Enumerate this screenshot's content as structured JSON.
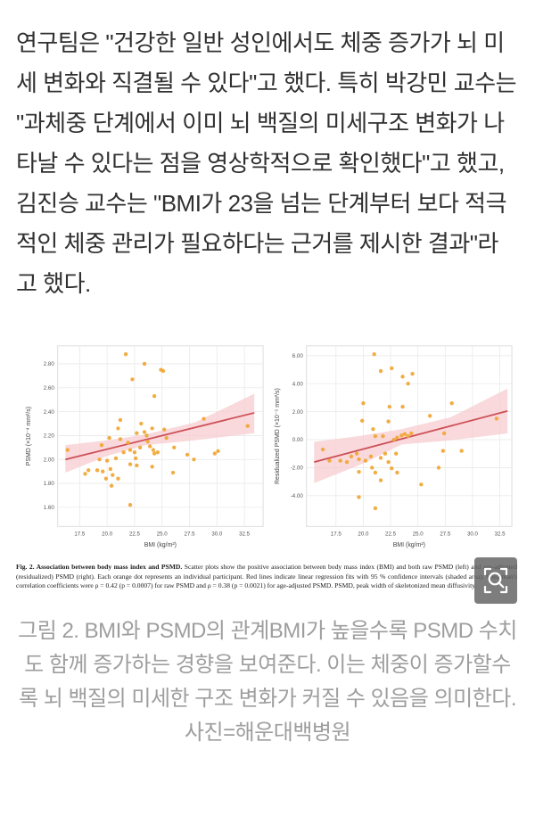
{
  "article": {
    "paragraph": "연구팀은 \"건강한 일반 성인에서도 체중 증가가 뇌 미세 변화와 직결될 수 있다\"고 했다. 특히 박강민 교수는 \"과체중 단계에서 이미 뇌 백질의 미세구조 변화가 나타날 수 있다는 점을 영상학적으로 확인했다\"고 했고, 김진승 교수는 \"BMI가 23을 넘는 단계부터 보다 적극적인 체중 관리가 필요하다는 근거를 제시한 결과\"라고 했다."
  },
  "figure": {
    "caption_bold": "Fig. 2. Association between body mass index and PSMD.",
    "caption_rest": " Scatter plots show the positive association between body mass index (BMI) and both raw PSMD (left) and age-adjusted (residualized) PSMD (right). Each orange dot represents an individual participant. Red lines indicate linear regression fits with 95 % confidence intervals (shaded area). Spearman's correlation coefficients were ρ = 0.42 (p = 0.0007) for raw PSMD and ρ = 0.38 (p = 0.0021) for age-adjusted PSMD. PSMD, peak width of skeletonized mean diffusivity.",
    "zoom_button_icon": "magnifier-zoom-icon"
  },
  "photo_caption": {
    "text": "그림 2. BMI와 PSMD의 관계BMI가 높을수록 PSMD 수치도 함께 증가하는 경향을 보여준다. 이는 체중이 증가할수록 뇌 백질의 미세한 구조 변화가 커질 수 있음을 의미한다. 사진=해운대백병원"
  },
  "colors": {
    "dot": "#f0a42f",
    "line": "#cd4f57",
    "band": "#f7ccd0",
    "grid": "#e9e9e9",
    "frame": "#dddddd",
    "tick_text": "#555555",
    "caption_gray": "#9e9e9e"
  },
  "chart_data": [
    {
      "type": "scatter",
      "title": "",
      "xlabel": "BMI (kg/m²)",
      "ylabel": "PSMD (×10⁻⁴ mm²/s)",
      "xlim": [
        15.5,
        34.2
      ],
      "ylim": [
        1.44,
        2.95
      ],
      "xticks": [
        17.5,
        20.0,
        22.5,
        25.0,
        27.5,
        30.0,
        32.5
      ],
      "xtick_labels": [
        "17.5",
        "20.0",
        "22.5",
        "25.0",
        "27.5",
        "30.0",
        "32.5"
      ],
      "yticks": [
        1.6,
        1.8,
        2.0,
        2.2,
        2.4,
        2.6,
        2.8
      ],
      "ytick_labels": [
        "1.60",
        "1.80",
        "2.00",
        "2.20",
        "2.40",
        "2.60",
        "2.80"
      ],
      "grid": true,
      "legend": "none",
      "points": [
        [
          16.4,
          2.08
        ],
        [
          18.0,
          1.88
        ],
        [
          18.3,
          1.91
        ],
        [
          19.1,
          1.91
        ],
        [
          19.3,
          2.0
        ],
        [
          19.5,
          2.12
        ],
        [
          19.6,
          1.9
        ],
        [
          19.9,
          1.84
        ],
        [
          20.0,
          1.99
        ],
        [
          20.2,
          2.18
        ],
        [
          20.3,
          1.92
        ],
        [
          20.4,
          1.78
        ],
        [
          20.5,
          1.87
        ],
        [
          20.8,
          2.01
        ],
        [
          21.0,
          2.26
        ],
        [
          21.0,
          1.84
        ],
        [
          21.2,
          2.33
        ],
        [
          21.2,
          2.17
        ],
        [
          21.5,
          2.06
        ],
        [
          21.7,
          2.88
        ],
        [
          21.9,
          2.14
        ],
        [
          22.1,
          2.08
        ],
        [
          22.1,
          1.96
        ],
        [
          22.1,
          1.62
        ],
        [
          22.3,
          2.67
        ],
        [
          22.5,
          2.06
        ],
        [
          22.6,
          2.01
        ],
        [
          22.7,
          2.22
        ],
        [
          22.7,
          1.95
        ],
        [
          23.0,
          2.1
        ],
        [
          23.1,
          2.3
        ],
        [
          23.4,
          2.8
        ],
        [
          23.4,
          2.23
        ],
        [
          23.6,
          2.2
        ],
        [
          23.7,
          2.15
        ],
        [
          23.9,
          2.11
        ],
        [
          24.1,
          2.26
        ],
        [
          24.1,
          1.94
        ],
        [
          24.2,
          2.08
        ],
        [
          24.3,
          2.53
        ],
        [
          24.3,
          2.05
        ],
        [
          24.6,
          2.06
        ],
        [
          24.9,
          2.75
        ],
        [
          25.1,
          2.74
        ],
        [
          25.2,
          2.25
        ],
        [
          25.4,
          2.18
        ],
        [
          26.0,
          1.89
        ],
        [
          26.1,
          2.1
        ],
        [
          27.3,
          2.04
        ],
        [
          27.9,
          2.0
        ],
        [
          28.8,
          2.34
        ],
        [
          29.8,
          2.05
        ],
        [
          30.1,
          2.07
        ],
        [
          32.8,
          2.28
        ]
      ],
      "regression": {
        "x": [
          16.2,
          33.4
        ],
        "y": [
          2.0,
          2.39
        ]
      },
      "band": {
        "x": [
          16.2,
          20.0,
          23.5,
          28.0,
          33.4
        ],
        "lower": [
          1.89,
          2.03,
          2.12,
          2.16,
          2.22
        ],
        "upper": [
          2.12,
          2.16,
          2.21,
          2.31,
          2.55
        ]
      },
      "spearman": "ρ = 0.42 (p = 0.0007)"
    },
    {
      "type": "scatter",
      "title": "",
      "xlabel": "BMI (kg/m²)",
      "ylabel": "Residualized PSMD (×10⁻⁵ mm²/s)",
      "xlim": [
        14.8,
        33.6
      ],
      "ylim": [
        -6.2,
        6.7
      ],
      "xticks": [
        17.5,
        20.0,
        22.5,
        25.0,
        27.5,
        30.0,
        32.5
      ],
      "xtick_labels": [
        "17.5",
        "20.0",
        "22.5",
        "25.0",
        "27.5",
        "30.0",
        "32.5"
      ],
      "yticks": [
        -4,
        -2,
        0,
        2,
        4,
        6
      ],
      "ytick_labels": [
        "-4.00",
        "-2.00",
        "0.00",
        "2.00",
        "4.00",
        "6.00"
      ],
      "grid": true,
      "legend": "none",
      "points": [
        [
          16.3,
          -0.7
        ],
        [
          16.9,
          -1.5
        ],
        [
          17.9,
          -1.5
        ],
        [
          18.5,
          -1.6
        ],
        [
          18.9,
          -1.2
        ],
        [
          19.4,
          -1.0
        ],
        [
          19.6,
          -1.4
        ],
        [
          19.6,
          -2.3
        ],
        [
          19.6,
          -4.1
        ],
        [
          19.9,
          1.35
        ],
        [
          20.0,
          2.6
        ],
        [
          20.2,
          -1.5
        ],
        [
          20.7,
          -1.2
        ],
        [
          20.8,
          -2.0
        ],
        [
          20.9,
          0.75
        ],
        [
          21.0,
          6.1
        ],
        [
          21.1,
          0.25
        ],
        [
          21.1,
          -2.35
        ],
        [
          21.1,
          -4.9
        ],
        [
          21.6,
          4.9
        ],
        [
          21.6,
          -1.3
        ],
        [
          21.6,
          -2.9
        ],
        [
          21.8,
          0.25
        ],
        [
          22.0,
          -1.0
        ],
        [
          22.3,
          1.3
        ],
        [
          22.3,
          -1.6
        ],
        [
          22.4,
          2.35
        ],
        [
          22.6,
          5.1
        ],
        [
          22.6,
          -2.05
        ],
        [
          22.8,
          0.0
        ],
        [
          23.0,
          -1.0
        ],
        [
          23.1,
          0.15
        ],
        [
          23.1,
          -2.35
        ],
        [
          23.5,
          0.3
        ],
        [
          23.6,
          4.5
        ],
        [
          23.6,
          2.35
        ],
        [
          23.8,
          0.4
        ],
        [
          24.1,
          4.0
        ],
        [
          24.1,
          0.25
        ],
        [
          24.4,
          0.45
        ],
        [
          24.5,
          4.7
        ],
        [
          25.3,
          -3.2
        ],
        [
          26.1,
          1.7
        ],
        [
          26.9,
          -2.0
        ],
        [
          27.3,
          -0.8
        ],
        [
          27.4,
          0.45
        ],
        [
          28.1,
          2.6
        ],
        [
          29.0,
          -0.8
        ],
        [
          32.2,
          1.5
        ]
      ],
      "regression": {
        "x": [
          15.5,
          33.2
        ],
        "y": [
          -1.6,
          2.05
        ]
      },
      "band": {
        "x": [
          15.5,
          20.0,
          23.5,
          28.0,
          33.2
        ],
        "lower": [
          -3.1,
          -1.7,
          -0.35,
          -0.05,
          0.45
        ],
        "upper": [
          -0.15,
          0.3,
          0.75,
          1.6,
          3.65
        ]
      },
      "spearman": "ρ = 0.38 (p = 0.0021)"
    }
  ]
}
